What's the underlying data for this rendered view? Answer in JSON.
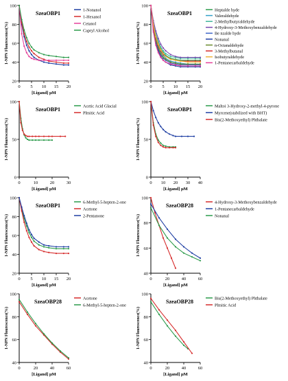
{
  "chart_data": [
    {
      "type": "line",
      "title": "SzeaOBP1",
      "xlabel": "[Ligand] μM",
      "ylabel": "1-NPN Flourescence(%)",
      "xlim": [
        0,
        20
      ],
      "ylim": [
        20,
        100
      ],
      "xticks": [
        0,
        5,
        10,
        15,
        20
      ],
      "yticks": [
        20,
        40,
        60,
        80,
        100
      ],
      "legend_position": "right",
      "series": [
        {
          "name": "1-Nonanol",
          "color": "#1f3fa3",
          "x": [
            0,
            1,
            2,
            3,
            4,
            5,
            6,
            8,
            10,
            12,
            15,
            18,
            20
          ],
          "y": [
            100,
            80,
            67,
            58,
            52,
            48,
            45,
            42,
            40,
            39,
            38,
            37,
            37
          ]
        },
        {
          "name": "1-Hexanol",
          "color": "#d62c2c",
          "x": [
            0,
            1,
            2,
            3,
            4,
            5,
            6,
            8,
            10,
            12,
            15,
            18,
            20
          ],
          "y": [
            100,
            82,
            70,
            62,
            56,
            52,
            49,
            45,
            43,
            41,
            40,
            39,
            39
          ]
        },
        {
          "name": "Cetanol",
          "color": "#e6409a",
          "x": [
            0,
            1,
            2,
            3,
            4,
            5,
            6,
            8,
            10,
            12,
            15,
            18,
            20
          ],
          "y": [
            100,
            70,
            57,
            50,
            46,
            44,
            43,
            42,
            42,
            42,
            42,
            42,
            42
          ]
        },
        {
          "name": "Capryl Alcohol",
          "color": "#2b9a4a",
          "x": [
            0,
            1,
            2,
            3,
            4,
            5,
            6,
            8,
            10,
            12,
            15,
            18,
            20
          ],
          "y": [
            100,
            85,
            74,
            66,
            60,
            56,
            53,
            50,
            48,
            47,
            46,
            45,
            45
          ]
        }
      ]
    },
    {
      "type": "line",
      "title": "SzeaOBP1",
      "xlabel": "[Ligand] μM",
      "ylabel": "1-NPN Flourescence(%)",
      "xlim": [
        0,
        20
      ],
      "ylim": [
        20,
        100
      ],
      "xticks": [
        0,
        5,
        10,
        15,
        20
      ],
      "yticks": [
        20,
        40,
        60,
        80,
        100
      ],
      "legend_position": "right",
      "series": [
        {
          "name": "Heptalde hyde",
          "color": "#2b9a4a",
          "x": [
            0,
            1,
            2,
            3,
            4,
            5,
            6,
            8,
            10,
            12,
            15,
            18,
            20
          ],
          "y": [
            100,
            80,
            68,
            60,
            54,
            50,
            47,
            44,
            43,
            42,
            42,
            42,
            42
          ]
        },
        {
          "name": "Valeraldehyde",
          "color": "#33a0c8",
          "x": [
            0,
            1,
            2,
            3,
            4,
            5,
            6,
            8,
            10,
            12,
            15,
            18,
            20
          ],
          "y": [
            100,
            78,
            65,
            57,
            51,
            47,
            44,
            41,
            40,
            39,
            38,
            38,
            38
          ]
        },
        {
          "name": "2-Methylbutyraldehyde",
          "color": "#3fb59a",
          "x": [
            0,
            1,
            2,
            3,
            4,
            5,
            6,
            8,
            10,
            12,
            15,
            18,
            20
          ],
          "y": [
            100,
            82,
            70,
            62,
            56,
            52,
            49,
            46,
            45,
            44,
            44,
            44,
            44
          ]
        },
        {
          "name": "4-Hydroxy-3-Methoxybenzaldehyde",
          "color": "#7a4ab0",
          "x": [
            0,
            1,
            2,
            3,
            4,
            5,
            6,
            8,
            10,
            12,
            15,
            18,
            20
          ],
          "y": [
            100,
            84,
            73,
            65,
            59,
            55,
            52,
            48,
            46,
            45,
            45,
            45,
            45
          ]
        },
        {
          "name": "Be nzalde hyde",
          "color": "#3a62c8",
          "x": [
            0,
            1,
            2,
            3,
            4,
            5,
            6,
            8,
            10,
            12,
            15,
            18,
            20
          ],
          "y": [
            100,
            76,
            62,
            54,
            48,
            44,
            42,
            39,
            38,
            37,
            37,
            37,
            37
          ]
        },
        {
          "name": "Nonanal",
          "color": "#1f3fa3",
          "x": [
            0,
            1,
            2,
            3,
            4,
            5,
            6,
            8,
            10,
            12,
            15,
            18,
            20
          ],
          "y": [
            100,
            74,
            60,
            52,
            46,
            42,
            40,
            37,
            36,
            35,
            35,
            35,
            35
          ]
        },
        {
          "name": "n-Octanaldehyde",
          "color": "#6a8a2c",
          "x": [
            0,
            1,
            2,
            3,
            4,
            5,
            6,
            8,
            10,
            12,
            15,
            18,
            20
          ],
          "y": [
            100,
            76,
            63,
            55,
            49,
            45,
            43,
            40,
            39,
            38,
            38,
            38,
            38
          ]
        },
        {
          "name": "3-Methylbutanal",
          "color": "#d62c2c",
          "x": [
            0,
            1,
            2,
            3,
            4,
            5,
            6,
            8,
            10,
            12,
            15,
            18,
            20
          ],
          "y": [
            100,
            78,
            66,
            58,
            52,
            48,
            46,
            43,
            42,
            41,
            41,
            41,
            41
          ]
        },
        {
          "name": "Isobutyraldehyde",
          "color": "#f0b43c",
          "x": [
            0,
            1,
            2,
            3,
            4,
            5,
            6,
            8,
            10,
            12,
            15,
            18,
            20
          ],
          "y": [
            100,
            80,
            67,
            59,
            53,
            49,
            46,
            43,
            42,
            41,
            40,
            40,
            40
          ]
        },
        {
          "name": "1-Pentanecarbaldehyde",
          "color": "#e6409a",
          "x": [
            0,
            1,
            2,
            3,
            4,
            5,
            6,
            8,
            10,
            12,
            15,
            18,
            20
          ],
          "y": [
            100,
            72,
            58,
            50,
            45,
            42,
            40,
            38,
            37,
            36,
            36,
            36,
            36
          ]
        }
      ]
    },
    {
      "type": "line",
      "title": "SzeaOBP1",
      "xlabel": "[Ligand] μM",
      "ylabel": "1-NPN Flourescence(%)",
      "xlim": [
        0,
        30
      ],
      "ylim": [
        0,
        100
      ],
      "xticks": [
        0,
        10,
        20,
        30
      ],
      "yticks": [
        0,
        50,
        100
      ],
      "legend_position": "right",
      "series": [
        {
          "name": "Acetic Acid Glacial",
          "color": "#2b9a4a",
          "x": [
            0,
            1,
            2,
            3,
            4,
            5,
            6,
            8,
            10,
            12,
            15,
            18,
            20
          ],
          "y": [
            100,
            78,
            64,
            56,
            52,
            50,
            49,
            49,
            49,
            49,
            49,
            49,
            49
          ]
        },
        {
          "name": "Plmitic Acid",
          "color": "#d62c2c",
          "x": [
            0,
            1,
            2,
            3,
            4,
            5,
            6,
            8,
            10,
            12,
            15,
            18,
            20,
            25,
            28
          ],
          "y": [
            100,
            72,
            62,
            57,
            55,
            54,
            54,
            54,
            54,
            54,
            54,
            54,
            54,
            54,
            54
          ]
        }
      ]
    },
    {
      "type": "line",
      "title": "SzeaOBP1",
      "xlabel": "[Ligand] μM",
      "ylabel": "1-NPN Flourescence(%)",
      "xlim": [
        0,
        40
      ],
      "ylim": [
        0,
        100
      ],
      "xticks": [
        0,
        10,
        20,
        30,
        40
      ],
      "yticks": [
        0,
        50,
        100
      ],
      "legend_position": "right",
      "series": [
        {
          "name": "Maltoi 3-Hydroxy-2-methyl-4-pyrone",
          "color": "#2b9a4a",
          "x": [
            0,
            2,
            4,
            6,
            8,
            10,
            12,
            15,
            18,
            20
          ],
          "y": [
            100,
            72,
            57,
            49,
            45,
            42,
            41,
            40,
            40,
            40
          ]
        },
        {
          "name": "Myrcene(stabilized with BHT)",
          "color": "#1f3fa3",
          "x": [
            0,
            2,
            4,
            6,
            8,
            10,
            12,
            15,
            18,
            20,
            25,
            30,
            35
          ],
          "y": [
            100,
            88,
            79,
            72,
            67,
            63,
            60,
            57,
            55,
            54,
            54,
            54,
            54
          ]
        },
        {
          "name": "Bis(2-Methoxyethyl) Phthalate",
          "color": "#d62c2c",
          "x": [
            0,
            2,
            4,
            6,
            8,
            10,
            12,
            15,
            18,
            20
          ],
          "y": [
            100,
            69,
            54,
            46,
            42,
            40,
            39,
            39,
            39,
            39
          ]
        }
      ]
    },
    {
      "type": "line",
      "title": "SzeaOBP1",
      "xlabel": "[Ligand] μM",
      "ylabel": "1-NPN Flourescence(%)",
      "xlim": [
        0,
        20
      ],
      "ylim": [
        20,
        100
      ],
      "xticks": [
        0,
        5,
        10,
        15,
        20
      ],
      "yticks": [
        20,
        40,
        60,
        80,
        100
      ],
      "legend_position": "right",
      "series": [
        {
          "name": "6-Methyl-5-hepten-2-one",
          "color": "#2b9a4a",
          "x": [
            0,
            1,
            2,
            3,
            4,
            5,
            6,
            8,
            10,
            12,
            15,
            18,
            20
          ],
          "y": [
            100,
            88,
            78,
            70,
            63,
            58,
            54,
            50,
            48,
            47,
            46,
            46,
            46
          ]
        },
        {
          "name": "Acetone",
          "color": "#d62c2c",
          "x": [
            0,
            1,
            2,
            3,
            4,
            5,
            6,
            8,
            10,
            12,
            15,
            18,
            20
          ],
          "y": [
            100,
            86,
            74,
            65,
            58,
            53,
            49,
            45,
            43,
            42,
            41,
            41,
            41
          ]
        },
        {
          "name": "2-Pentanone",
          "color": "#1f3fa3",
          "x": [
            0,
            1,
            2,
            3,
            4,
            5,
            6,
            8,
            10,
            12,
            15,
            18,
            20
          ],
          "y": [
            100,
            90,
            81,
            73,
            66,
            61,
            57,
            53,
            50,
            49,
            48,
            48,
            48
          ]
        }
      ]
    },
    {
      "type": "line",
      "title": "SzeaOBP28",
      "xlabel": "[Ligand] μM",
      "ylabel": "1-NPN Flourescence(%)",
      "xlim": [
        0,
        60
      ],
      "ylim": [
        40,
        100
      ],
      "xticks": [
        0,
        20,
        40,
        60
      ],
      "yticks": [
        40,
        60,
        80,
        100
      ],
      "legend_position": "right",
      "series": [
        {
          "name": "4-Hydroxy-3-Methoxybenzaldehyde",
          "color": "#d62c2c",
          "x": [
            0,
            5,
            10,
            15,
            20,
            25,
            30
          ],
          "y": [
            100,
            88,
            78,
            68,
            60,
            52,
            44
          ]
        },
        {
          "name": "1-Pentanecarbaldehyde",
          "color": "#1f3fa3",
          "x": [
            0,
            10,
            20,
            30,
            40,
            50,
            60
          ],
          "y": [
            95,
            84,
            75,
            67,
            61,
            56,
            52
          ]
        },
        {
          "name": "Nonanal",
          "color": "#2b9a4a",
          "x": [
            0,
            10,
            20,
            30,
            40,
            50,
            60
          ],
          "y": [
            92,
            78,
            68,
            61,
            56,
            53,
            50
          ]
        }
      ]
    },
    {
      "type": "line",
      "title": "SzeaOBP28",
      "xlabel": "[Ligand] μM",
      "ylabel": "1-NPN Flourescence(%)",
      "xlim": [
        0,
        60
      ],
      "ylim": [
        40,
        100
      ],
      "xticks": [
        0,
        20,
        40,
        60
      ],
      "yticks": [
        40,
        60,
        80,
        100
      ],
      "legend_position": "right",
      "series": [
        {
          "name": "Acetone",
          "color": "#d62c2c",
          "x": [
            0,
            10,
            20,
            30,
            40,
            50,
            60
          ],
          "y": [
            93,
            82,
            72,
            64,
            56,
            49,
            43
          ]
        },
        {
          "name": "6-Methyl-5-hepten-2-one",
          "color": "#2b9a4a",
          "x": [
            0,
            10,
            20,
            30,
            40,
            50,
            60
          ],
          "y": [
            95,
            84,
            74,
            65,
            57,
            50,
            44
          ]
        }
      ]
    },
    {
      "type": "line",
      "title": "SzeaOBP28",
      "xlabel": "[Ligand] μM",
      "ylabel": "1-NPN Flourescence(%)",
      "xlim": [
        0,
        60
      ],
      "ylim": [
        40,
        100
      ],
      "xticks": [
        0,
        20,
        40,
        60
      ],
      "yticks": [
        40,
        60,
        80,
        100
      ],
      "legend_position": "right",
      "series": [
        {
          "name": "Bis(2-Methoxyethyl) Phthalate",
          "color": "#2b9a4a",
          "x": [
            0,
            10,
            20,
            30,
            40,
            45
          ],
          "y": [
            93,
            82,
            72,
            63,
            55,
            52
          ]
        },
        {
          "name": "Plmitic Acid",
          "color": "#d62c2c",
          "x": [
            0,
            10,
            20,
            30,
            40,
            50
          ],
          "y": [
            96,
            86,
            77,
            68,
            58,
            48
          ]
        }
      ]
    }
  ]
}
